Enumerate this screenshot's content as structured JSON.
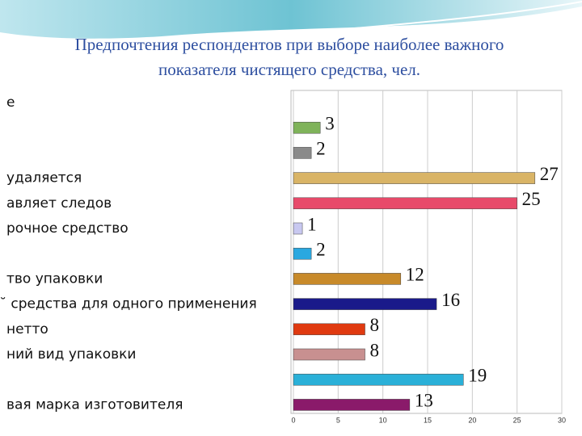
{
  "chart_data": {
    "type": "barh",
    "title": [
      "Предпочтения респондентов  при выборе наиболее важного",
      "показателя чистящего средства, чел."
    ],
    "categories": [
      "е",
      null,
      null,
      "удаляется",
      "авляет следов",
      "рочное средство",
      null,
      "тво упаковки",
      "̆ средства для одного применения",
      "нетто",
      "ний вид упаковки",
      null,
      "вая марка изготовителя"
    ],
    "values": [
      null,
      3,
      2,
      27,
      25,
      1,
      2,
      12,
      16,
      8,
      8,
      19,
      13
    ],
    "colors": [
      "#999999",
      "#7fb35a",
      "#8a8a8a",
      "#d9b466",
      "#e84a6a",
      "#c8c8f0",
      "#2aa8e0",
      "#c88a2a",
      "#1a1a8a",
      "#e03a10",
      "#c89090",
      "#2ab0d8",
      "#8a1a6a"
    ],
    "xlim": [
      0,
      30
    ],
    "xticks": [
      0,
      5,
      10,
      15,
      20,
      25,
      30
    ],
    "grid": true
  }
}
